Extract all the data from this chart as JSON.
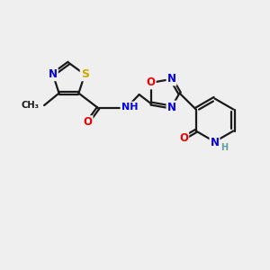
{
  "background_color": "#efefef",
  "bond_color": "#1a1a1a",
  "bond_width": 1.6,
  "dbo": 0.055,
  "figsize": [
    3.0,
    3.0
  ],
  "dpi": 100,
  "atom_colors": {
    "N": "#0000ee",
    "O": "#ee0000",
    "S": "#ccaa00",
    "H": "#5f9ea0",
    "C": "#1a1a1a"
  },
  "afs": 8.5,
  "xlim": [
    0,
    10
  ],
  "ylim": [
    0,
    10
  ]
}
